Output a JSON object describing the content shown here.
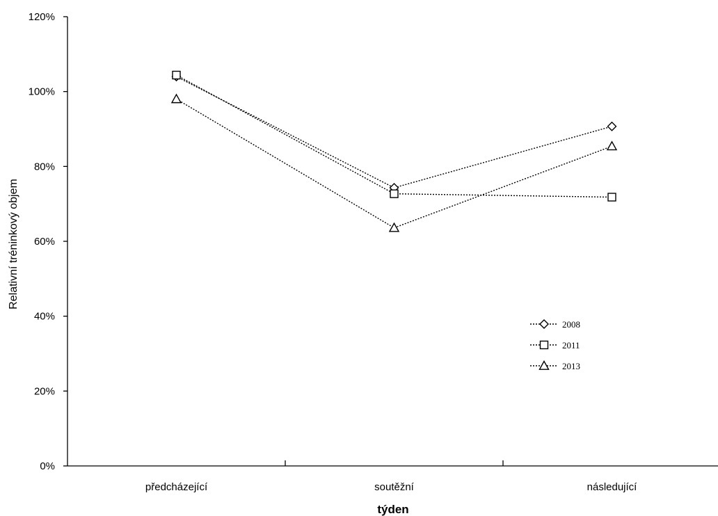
{
  "chart_data": {
    "type": "line",
    "title": "",
    "xlabel": "týden",
    "ylabel": "Relativní tréninkový objem",
    "categories": [
      "předcházející",
      "soutěžní",
      "následující"
    ],
    "ylim": [
      0,
      1.2
    ],
    "y_ticks": [
      "0%",
      "20%",
      "40%",
      "60%",
      "80%",
      "100%",
      "120%"
    ],
    "y_tick_values": [
      0,
      0.2,
      0.4,
      0.6,
      0.8,
      1.0,
      1.2
    ],
    "grid": false,
    "legend_position": "right",
    "series": [
      {
        "name": "2008",
        "marker": "diamond",
        "line_style": "dotted",
        "values": [
          1.04,
          0.743,
          0.907
        ]
      },
      {
        "name": "2011",
        "marker": "square",
        "line_style": "dotted",
        "values": [
          1.044,
          0.727,
          0.718
        ]
      },
      {
        "name": "2013",
        "marker": "triangle",
        "line_style": "dotted",
        "values": [
          0.98,
          0.636,
          0.854
        ]
      }
    ]
  }
}
